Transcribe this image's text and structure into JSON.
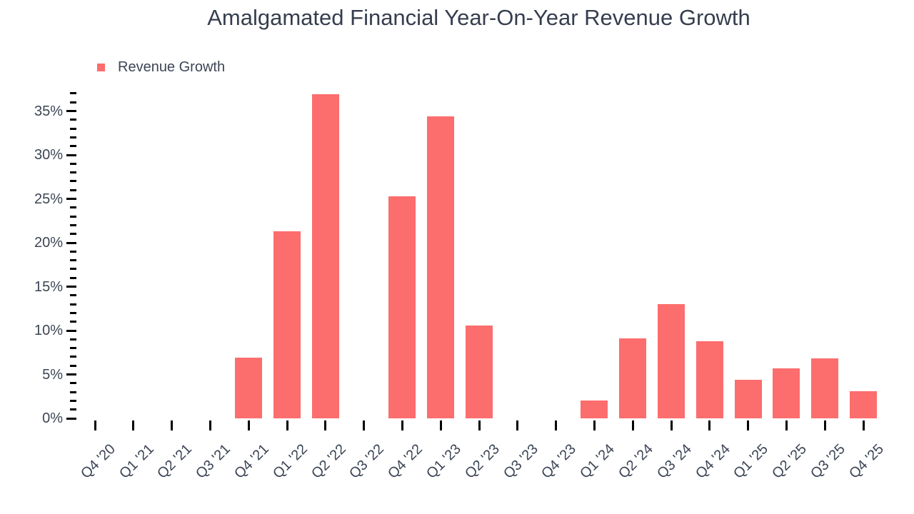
{
  "title": "Amalgamated Financial Year-On-Year Revenue Growth",
  "legend": {
    "label": "Revenue Growth",
    "swatch_color": "#FC6D6D"
  },
  "colors": {
    "bar": "#FC6D6D",
    "title_text": "#363E4E",
    "axis_text": "#3C4555",
    "tick": "#000000",
    "background": "#FFFFFF"
  },
  "chart_data": {
    "type": "bar",
    "title": "Amalgamated Financial Year-On-Year Revenue Growth",
    "xlabel": "",
    "ylabel": "",
    "categories": [
      "Q4 '20",
      "Q1 '21",
      "Q2 '21",
      "Q3 '21",
      "Q4 '21",
      "Q1 '22",
      "Q2 '22",
      "Q3 '22",
      "Q4 '22",
      "Q1 '23",
      "Q2 '23",
      "Q3 '23",
      "Q4 '23",
      "Q1 '24",
      "Q2 '24",
      "Q3 '24",
      "Q4 '24",
      "Q1 '25",
      "Q2 '25",
      "Q3 '25",
      "Q4 '25"
    ],
    "series": [
      {
        "name": "Revenue Growth",
        "color": "#FC6D6D",
        "values": [
          null,
          null,
          null,
          null,
          6.9,
          21.3,
          36.9,
          null,
          25.3,
          34.4,
          10.6,
          null,
          null,
          2.0,
          9.1,
          13.0,
          8.8,
          4.4,
          5.7,
          6.8,
          3.1
        ]
      }
    ],
    "ylim": [
      0,
      37
    ],
    "y_unit": "%",
    "y_major_step": 5,
    "y_minor_step": 1,
    "y_tick_labels": [
      "0%",
      "5%",
      "10%",
      "15%",
      "20%",
      "25%",
      "30%",
      "35%"
    ],
    "grid": false,
    "legend_position": "top-left",
    "x_label_rotation": -45
  }
}
